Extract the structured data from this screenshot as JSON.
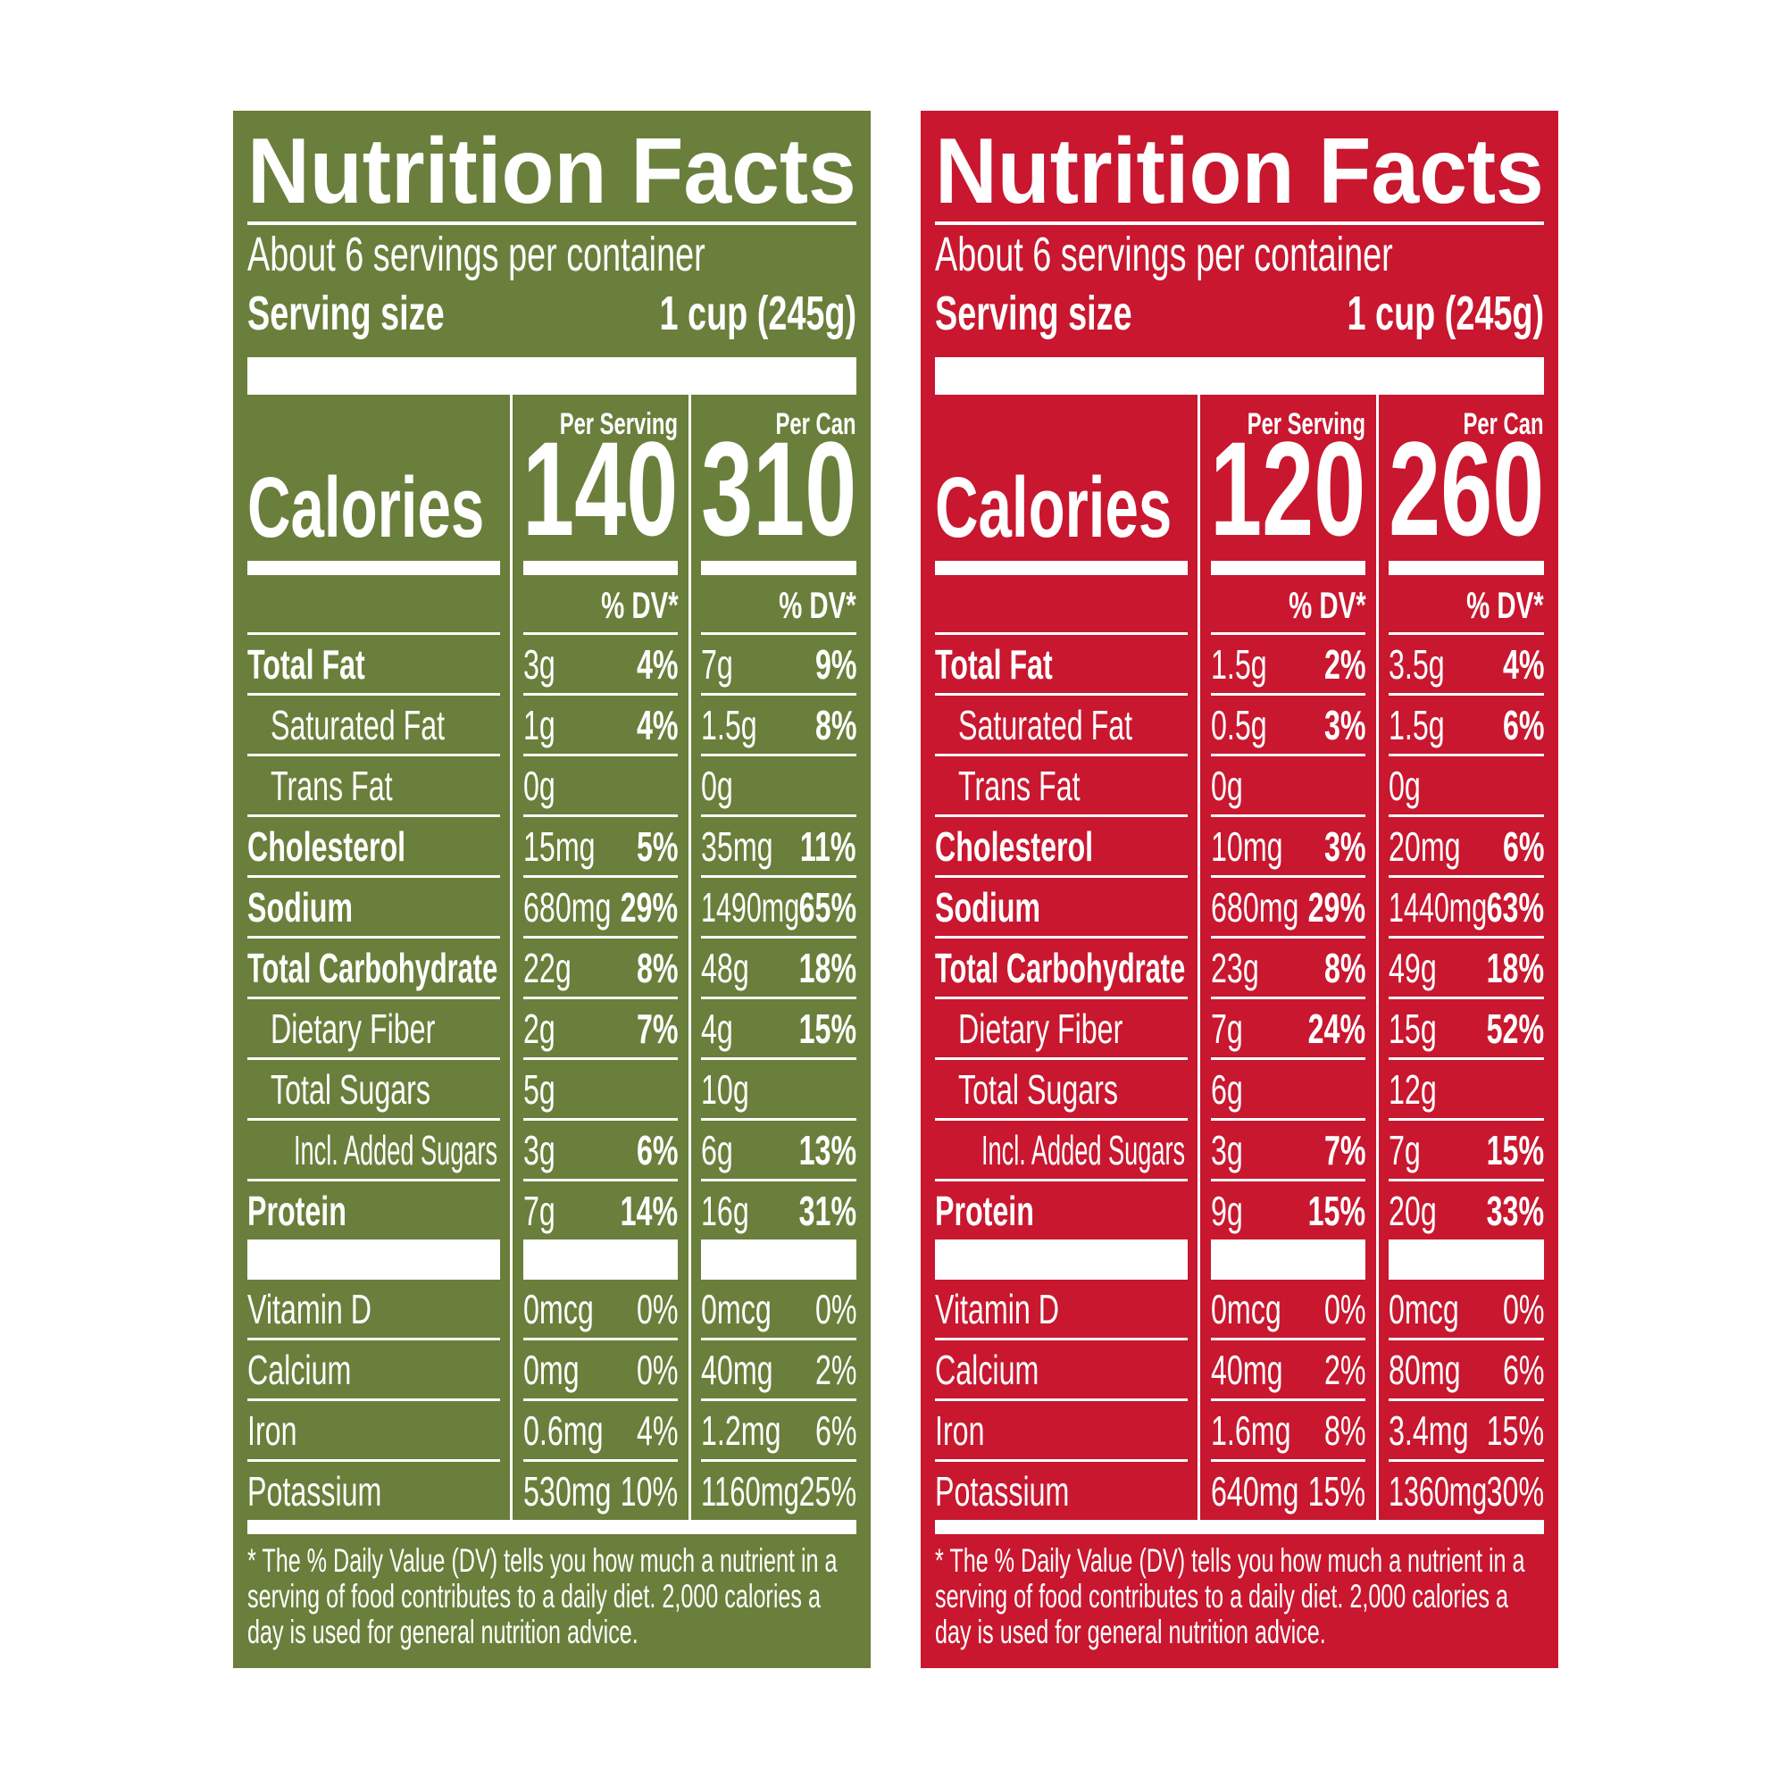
{
  "labels": [
    {
      "color": "#6a7f3b",
      "title": "Nutrition Facts",
      "servings": "About 6 servings per container",
      "serving_size_label": "Serving size",
      "serving_size": "1 cup (245g)",
      "columns": [
        "Per Serving",
        "Per Can"
      ],
      "calories_label": "Calories",
      "calories": [
        "140",
        "310"
      ],
      "dv_header": [
        "% DV*",
        "% DV*"
      ],
      "rows": [
        {
          "name": "Total Fat",
          "level": 0,
          "values": [
            [
              "3g",
              "4%"
            ],
            [
              "7g",
              "9%"
            ]
          ]
        },
        {
          "name": "Saturated Fat",
          "level": 1,
          "values": [
            [
              "1g",
              "4%"
            ],
            [
              "1.5g",
              "8%"
            ]
          ]
        },
        {
          "name": "Trans Fat",
          "level": 1,
          "values": [
            [
              "0g",
              null
            ],
            [
              "0g",
              null
            ]
          ]
        },
        {
          "name": "Cholesterol",
          "level": 0,
          "values": [
            [
              "15mg",
              "5%"
            ],
            [
              "35mg",
              "11%"
            ]
          ]
        },
        {
          "name": "Sodium",
          "level": 0,
          "values": [
            [
              "680mg",
              "29%"
            ],
            [
              "1490mg",
              "65%"
            ]
          ]
        },
        {
          "name": "Total Carbohydrate",
          "level": 0,
          "values": [
            [
              "22g",
              "8%"
            ],
            [
              "48g",
              "18%"
            ]
          ]
        },
        {
          "name": "Dietary Fiber",
          "level": 1,
          "values": [
            [
              "2g",
              "7%"
            ],
            [
              "4g",
              "15%"
            ]
          ]
        },
        {
          "name": "Total Sugars",
          "level": 1,
          "values": [
            [
              "5g",
              null
            ],
            [
              "10g",
              null
            ]
          ]
        },
        {
          "name": "Incl. Added Sugars",
          "level": 2,
          "values": [
            [
              "3g",
              "6%"
            ],
            [
              "6g",
              "13%"
            ]
          ]
        },
        {
          "name": "Protein",
          "level": 0,
          "values": [
            [
              "7g",
              "14%"
            ],
            [
              "16g",
              "31%"
            ]
          ]
        }
      ],
      "vitamins": [
        {
          "name": "Vitamin D",
          "values": [
            [
              "0mcg",
              "0%"
            ],
            [
              "0mcg",
              "0%"
            ]
          ]
        },
        {
          "name": "Calcium",
          "values": [
            [
              "0mg",
              "0%"
            ],
            [
              "40mg",
              "2%"
            ]
          ]
        },
        {
          "name": "Iron",
          "values": [
            [
              "0.6mg",
              "4%"
            ],
            [
              "1.2mg",
              "6%"
            ]
          ]
        },
        {
          "name": "Potassium",
          "values": [
            [
              "530mg",
              "10%"
            ],
            [
              "1160mg",
              "25%"
            ]
          ]
        }
      ],
      "footnote": "* The % Daily Value (DV) tells you how much a nutrient in a serving of food contributes to a daily diet. 2,000 calories a day is used for general nutrition advice."
    },
    {
      "color": "#c8172f",
      "title": "Nutrition Facts",
      "servings": "About 6 servings per container",
      "serving_size_label": "Serving size",
      "serving_size": "1 cup (245g)",
      "columns": [
        "Per Serving",
        "Per Can"
      ],
      "calories_label": "Calories",
      "calories": [
        "120",
        "260"
      ],
      "dv_header": [
        "% DV*",
        "% DV*"
      ],
      "rows": [
        {
          "name": "Total Fat",
          "level": 0,
          "values": [
            [
              "1.5g",
              "2%"
            ],
            [
              "3.5g",
              "4%"
            ]
          ]
        },
        {
          "name": "Saturated Fat",
          "level": 1,
          "values": [
            [
              "0.5g",
              "3%"
            ],
            [
              "1.5g",
              "6%"
            ]
          ]
        },
        {
          "name": "Trans Fat",
          "level": 1,
          "values": [
            [
              "0g",
              null
            ],
            [
              "0g",
              null
            ]
          ]
        },
        {
          "name": "Cholesterol",
          "level": 0,
          "values": [
            [
              "10mg",
              "3%"
            ],
            [
              "20mg",
              "6%"
            ]
          ]
        },
        {
          "name": "Sodium",
          "level": 0,
          "values": [
            [
              "680mg",
              "29%"
            ],
            [
              "1440mg",
              "63%"
            ]
          ]
        },
        {
          "name": "Total Carbohydrate",
          "level": 0,
          "values": [
            [
              "23g",
              "8%"
            ],
            [
              "49g",
              "18%"
            ]
          ]
        },
        {
          "name": "Dietary Fiber",
          "level": 1,
          "values": [
            [
              "7g",
              "24%"
            ],
            [
              "15g",
              "52%"
            ]
          ]
        },
        {
          "name": "Total Sugars",
          "level": 1,
          "values": [
            [
              "6g",
              null
            ],
            [
              "12g",
              null
            ]
          ]
        },
        {
          "name": "Incl. Added Sugars",
          "level": 2,
          "values": [
            [
              "3g",
              "7%"
            ],
            [
              "7g",
              "15%"
            ]
          ]
        },
        {
          "name": "Protein",
          "level": 0,
          "values": [
            [
              "9g",
              "15%"
            ],
            [
              "20g",
              "33%"
            ]
          ]
        }
      ],
      "vitamins": [
        {
          "name": "Vitamin D",
          "values": [
            [
              "0mcg",
              "0%"
            ],
            [
              "0mcg",
              "0%"
            ]
          ]
        },
        {
          "name": "Calcium",
          "values": [
            [
              "40mg",
              "2%"
            ],
            [
              "80mg",
              "6%"
            ]
          ]
        },
        {
          "name": "Iron",
          "values": [
            [
              "1.6mg",
              "8%"
            ],
            [
              "3.4mg",
              "15%"
            ]
          ]
        },
        {
          "name": "Potassium",
          "values": [
            [
              "640mg",
              "15%"
            ],
            [
              "1360mg",
              "30%"
            ]
          ]
        }
      ],
      "footnote": "* The % Daily Value (DV) tells you how much a nutrient in a serving of food contributes to a daily diet. 2,000 calories a day is used for general nutrition advice."
    }
  ]
}
